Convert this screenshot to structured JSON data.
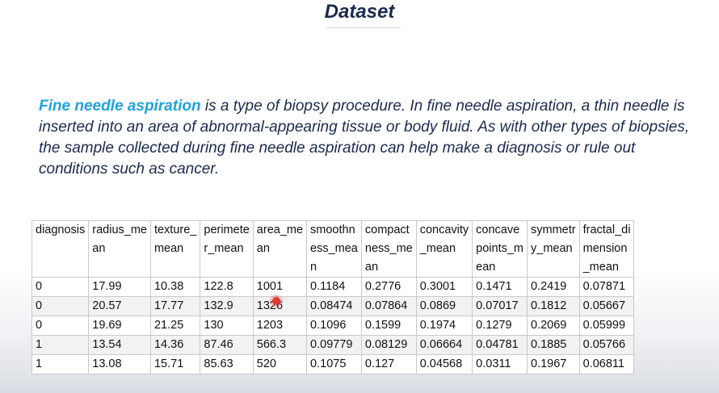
{
  "slide": {
    "title": "Dataset"
  },
  "intro": {
    "term": "Fine needle aspiration",
    "text": " is a type of biopsy procedure. In fine needle aspiration, a thin needle is inserted into an area of abnormal-appearing tissue or body fluid. As with other types of biopsies, the sample collected during fine needle aspiration can help make a diagnosis or rule out conditions such as cancer."
  },
  "table": {
    "headers": [
      [
        "diagnosis"
      ],
      [
        "radius_me",
        "an"
      ],
      [
        "texture_",
        "mean"
      ],
      [
        "perimete",
        "r_mean"
      ],
      [
        "area_me",
        "an"
      ],
      [
        "smoothn",
        "ess_mea",
        "n"
      ],
      [
        "compact",
        "ness_me",
        "an"
      ],
      [
        "concavity",
        "_mean"
      ],
      [
        "concave",
        "points_m",
        "ean"
      ],
      [
        "symmetr",
        "y_mean"
      ],
      [
        "fractal_di",
        "mension",
        "_mean"
      ]
    ],
    "rows": [
      [
        "0",
        "17.99",
        "10.38",
        "122.8",
        "1001",
        "0.1184",
        "0.2776",
        "0.3001",
        "0.1471",
        "0.2419",
        "0.07871"
      ],
      [
        "0",
        "20.57",
        "17.77",
        "132.9",
        "1326",
        "0.08474",
        "0.07864",
        "0.0869",
        "0.07017",
        "0.1812",
        "0.05667"
      ],
      [
        "0",
        "19.69",
        "21.25",
        "130",
        "1203",
        "0.1096",
        "0.1599",
        "0.1974",
        "0.1279",
        "0.2069",
        "0.05999"
      ],
      [
        "1",
        "13.54",
        "14.36",
        "87.46",
        "566.3",
        "0.09779",
        "0.08129",
        "0.06664",
        "0.04781",
        "0.1885",
        "0.05766"
      ],
      [
        "1",
        "13.08",
        "15.71",
        "85.63",
        "520",
        "0.1075",
        "0.127",
        "0.04568",
        "0.0311",
        "0.1967",
        "0.06811"
      ]
    ]
  },
  "colors": {
    "title": "#1b2a4e",
    "term_highlight": "#1fa3de",
    "pointer": "#e53935"
  }
}
